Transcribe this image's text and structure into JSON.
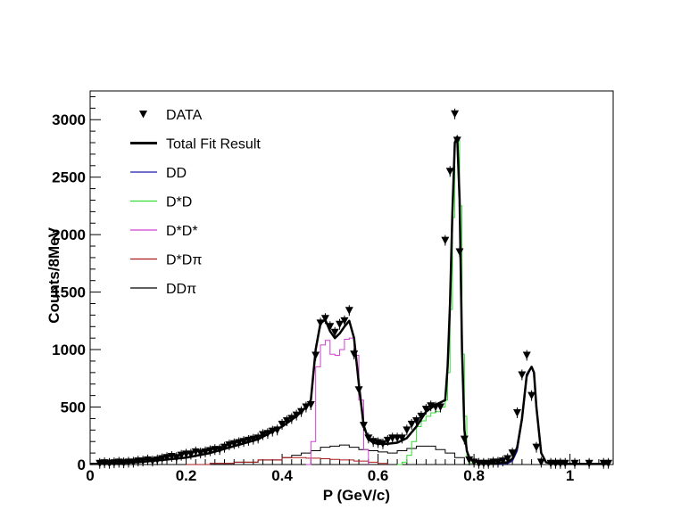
{
  "chart_data": {
    "type": "line",
    "xlabel": "P (GeV/c)",
    "ylabel": "Counts/8MeV",
    "xlim": [
      0,
      1.09
    ],
    "ylim": [
      0,
      3250
    ],
    "x_ticks": [
      0,
      0.2,
      0.4,
      0.6,
      0.8,
      1
    ],
    "x_tick_labels": [
      "0",
      "0.2",
      "0.4",
      "0.6",
      "0.8",
      "1"
    ],
    "y_ticks": [
      0,
      500,
      1000,
      1500,
      2000,
      2500,
      3000
    ],
    "y_tick_labels": [
      "0",
      "500",
      "1000",
      "1500",
      "2000",
      "2500",
      "3000"
    ],
    "grid": false,
    "legend_position": "top-left",
    "legend": [
      {
        "label": "DATA",
        "style": "marker",
        "color": "#000000"
      },
      {
        "label": "Total Fit Result",
        "style": "thick-line",
        "color": "#000000"
      },
      {
        "label": "DD",
        "style": "line",
        "color": "#1a1aa8"
      },
      {
        "label": "D*D",
        "style": "line",
        "color": "#33dd33"
      },
      {
        "label": "D*D*",
        "style": "line",
        "color": "#d040d0"
      },
      {
        "label": "D*Dπ",
        "style": "line",
        "color": "#aa1a1a"
      },
      {
        "label": "DDπ",
        "style": "line",
        "color": "#000000"
      }
    ],
    "series": [
      {
        "name": "DATA",
        "kind": "markers",
        "color": "#000000",
        "x": [
          0.02,
          0.03,
          0.04,
          0.05,
          0.06,
          0.07,
          0.08,
          0.09,
          0.1,
          0.11,
          0.12,
          0.13,
          0.14,
          0.15,
          0.16,
          0.17,
          0.18,
          0.19,
          0.2,
          0.21,
          0.22,
          0.23,
          0.24,
          0.25,
          0.26,
          0.27,
          0.28,
          0.29,
          0.3,
          0.31,
          0.32,
          0.33,
          0.34,
          0.35,
          0.36,
          0.37,
          0.38,
          0.39,
          0.4,
          0.41,
          0.42,
          0.43,
          0.44,
          0.45,
          0.46,
          0.47,
          0.48,
          0.49,
          0.5,
          0.51,
          0.52,
          0.53,
          0.54,
          0.55,
          0.56,
          0.57,
          0.58,
          0.59,
          0.6,
          0.61,
          0.62,
          0.63,
          0.64,
          0.65,
          0.66,
          0.67,
          0.68,
          0.69,
          0.7,
          0.71,
          0.72,
          0.73,
          0.74,
          0.75,
          0.76,
          0.765,
          0.77,
          0.78,
          0.79,
          0.8,
          0.81,
          0.82,
          0.83,
          0.84,
          0.85,
          0.86,
          0.87,
          0.88,
          0.89,
          0.9,
          0.91,
          0.92,
          0.93,
          0.94,
          0.96,
          0.97,
          0.98,
          0.99,
          1.01,
          1.04,
          1.07,
          1.08
        ],
        "y": [
          10,
          15,
          10,
          15,
          20,
          15,
          20,
          20,
          30,
          30,
          40,
          30,
          40,
          50,
          60,
          70,
          60,
          80,
          90,
          90,
          110,
          100,
          110,
          120,
          130,
          130,
          150,
          170,
          180,
          190,
          200,
          210,
          220,
          230,
          260,
          270,
          290,
          300,
          350,
          380,
          400,
          430,
          460,
          500,
          520,
          950,
          1230,
          1270,
          1200,
          1150,
          1220,
          1250,
          1340,
          960,
          650,
          340,
          230,
          200,
          190,
          180,
          210,
          230,
          230,
          230,
          300,
          350,
          380,
          420,
          480,
          510,
          500,
          500,
          1950,
          2550,
          3050,
          2820,
          1850,
          220,
          40,
          20,
          10,
          10,
          10,
          20,
          20,
          30,
          50,
          100,
          450,
          780,
          950,
          600,
          150,
          20,
          10,
          10,
          10,
          10,
          10,
          10,
          10,
          10
        ]
      },
      {
        "name": "Total Fit Result",
        "kind": "curve",
        "color": "#000000",
        "x": [
          0.0,
          0.05,
          0.1,
          0.15,
          0.2,
          0.25,
          0.3,
          0.35,
          0.4,
          0.43,
          0.45,
          0.46,
          0.47,
          0.48,
          0.49,
          0.5,
          0.51,
          0.52,
          0.53,
          0.54,
          0.55,
          0.56,
          0.57,
          0.58,
          0.59,
          0.6,
          0.62,
          0.64,
          0.66,
          0.68,
          0.7,
          0.72,
          0.74,
          0.745,
          0.75,
          0.755,
          0.76,
          0.765,
          0.77,
          0.775,
          0.78,
          0.785,
          0.79,
          0.8,
          0.82,
          0.85,
          0.87,
          0.88,
          0.89,
          0.9,
          0.91,
          0.92,
          0.925,
          0.93,
          0.935,
          0.94,
          0.95,
          0.96,
          0.98,
          1.0,
          1.05,
          1.08
        ],
        "y": [
          5,
          10,
          20,
          40,
          60,
          100,
          160,
          220,
          330,
          420,
          500,
          560,
          1000,
          1230,
          1260,
          1160,
          1100,
          1140,
          1200,
          1250,
          1100,
          700,
          340,
          220,
          190,
          180,
          180,
          190,
          230,
          330,
          460,
          520,
          560,
          850,
          1400,
          2200,
          2800,
          2850,
          2300,
          1000,
          300,
          120,
          60,
          30,
          10,
          10,
          20,
          50,
          150,
          400,
          780,
          850,
          800,
          500,
          300,
          100,
          20,
          10,
          5,
          5,
          5,
          5
        ]
      },
      {
        "name": "DD",
        "kind": "curve",
        "color": "#1a1aa8",
        "x": [
          0.85,
          0.87,
          0.88,
          0.89,
          0.9,
          0.91,
          0.92,
          0.925,
          0.93,
          0.935,
          0.94,
          0.95,
          0.96,
          0.98
        ],
        "y": [
          0,
          10,
          30,
          120,
          380,
          760,
          850,
          800,
          500,
          300,
          100,
          20,
          5,
          0
        ]
      },
      {
        "name": "D*D",
        "kind": "step",
        "color": "#33dd33",
        "x": [
          0.64,
          0.65,
          0.66,
          0.67,
          0.68,
          0.69,
          0.7,
          0.71,
          0.72,
          0.73,
          0.74,
          0.745,
          0.75,
          0.755,
          0.76,
          0.765,
          0.77,
          0.775,
          0.78,
          0.785,
          0.79,
          0.8
        ],
        "y": [
          0,
          20,
          80,
          200,
          330,
          380,
          420,
          450,
          460,
          500,
          560,
          800,
          1350,
          2150,
          2800,
          2820,
          2250,
          960,
          420,
          60,
          10,
          0
        ]
      },
      {
        "name": "D*D*",
        "kind": "step",
        "color": "#d040d0",
        "x": [
          0.45,
          0.46,
          0.47,
          0.48,
          0.49,
          0.5,
          0.51,
          0.52,
          0.53,
          0.54,
          0.55,
          0.56,
          0.57,
          0.58
        ],
        "y": [
          0,
          200,
          850,
          1040,
          1080,
          960,
          950,
          1000,
          1090,
          1100,
          950,
          560,
          130,
          0
        ]
      },
      {
        "name": "D*Dπ",
        "kind": "step",
        "color": "#aa1a1a",
        "x": [
          0.2,
          0.25,
          0.3,
          0.35,
          0.4,
          0.42,
          0.45,
          0.48,
          0.5,
          0.52,
          0.55,
          0.58,
          0.6,
          0.62
        ],
        "y": [
          0,
          10,
          20,
          40,
          60,
          60,
          55,
          50,
          45,
          40,
          30,
          20,
          10,
          0
        ]
      },
      {
        "name": "DDπ",
        "kind": "step",
        "color": "#000000",
        "x": [
          0.2,
          0.25,
          0.3,
          0.35,
          0.4,
          0.42,
          0.44,
          0.46,
          0.48,
          0.5,
          0.52,
          0.54,
          0.56,
          0.58,
          0.6,
          0.62,
          0.64,
          0.66,
          0.68,
          0.7,
          0.72,
          0.74,
          0.76,
          0.78
        ],
        "y": [
          0,
          10,
          20,
          40,
          60,
          80,
          100,
          120,
          150,
          160,
          170,
          150,
          130,
          120,
          110,
          100,
          120,
          140,
          160,
          160,
          130,
          100,
          60,
          0
        ]
      }
    ]
  }
}
